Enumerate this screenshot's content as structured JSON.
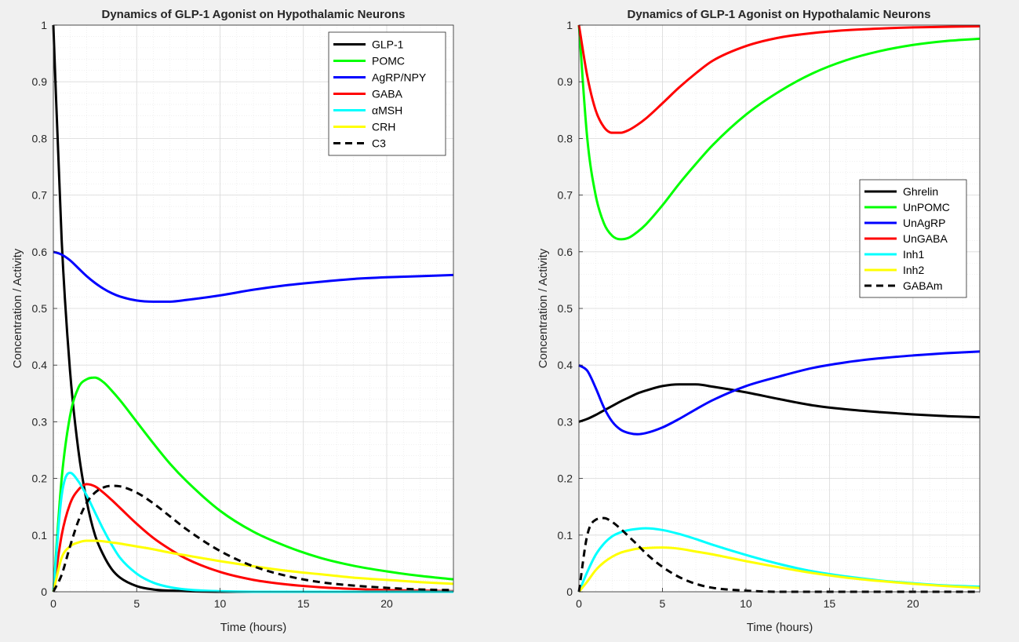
{
  "chart_data": [
    {
      "type": "line",
      "title": "Dynamics of GLP-1 Agonist on Hypothalamic Neurons",
      "xlabel": "Time (hours)",
      "ylabel": "Concentration / Activity",
      "xlim": [
        0,
        24
      ],
      "ylim": [
        0,
        1
      ],
      "xticks": [
        0,
        5,
        10,
        15,
        20
      ],
      "yticks": [
        0,
        0.1,
        0.2,
        0.3,
        0.4,
        0.5,
        0.6,
        0.7,
        0.8,
        0.9,
        1
      ],
      "xtick_labels": [
        "0",
        "5",
        "10",
        "15",
        "20"
      ],
      "ytick_labels": [
        "0",
        "0.1",
        "0.2",
        "0.3",
        "0.4",
        "0.5",
        "0.6",
        "0.7",
        "0.8",
        "0.9",
        "1"
      ],
      "grid": true,
      "legend_position": "top-right",
      "x": [
        0,
        0.5,
        1,
        1.5,
        2,
        2.5,
        3,
        3.5,
        4,
        5,
        6,
        7,
        8,
        10,
        12,
        14,
        16,
        18,
        20,
        22,
        24
      ],
      "series": [
        {
          "name": "GLP-1",
          "color": "#000000",
          "dash": false,
          "values": [
            1.0,
            0.62,
            0.39,
            0.25,
            0.16,
            0.1,
            0.065,
            0.04,
            0.025,
            0.01,
            0.004,
            0.002,
            0.001,
            0,
            0,
            0,
            0,
            0,
            0,
            0,
            0
          ]
        },
        {
          "name": "POMC",
          "color": "#00ff00",
          "dash": false,
          "values": [
            0,
            0.2,
            0.31,
            0.36,
            0.375,
            0.378,
            0.37,
            0.355,
            0.338,
            0.3,
            0.262,
            0.226,
            0.195,
            0.143,
            0.106,
            0.08,
            0.06,
            0.046,
            0.036,
            0.028,
            0.022
          ]
        },
        {
          "name": "AgRP/NPY",
          "color": "#0000ff",
          "dash": false,
          "values": [
            0.6,
            0.595,
            0.585,
            0.571,
            0.557,
            0.545,
            0.535,
            0.527,
            0.521,
            0.514,
            0.512,
            0.512,
            0.515,
            0.523,
            0.533,
            0.541,
            0.547,
            0.552,
            0.555,
            0.557,
            0.559
          ]
        },
        {
          "name": "GABA",
          "color": "#ff0000",
          "dash": false,
          "values": [
            0,
            0.1,
            0.155,
            0.18,
            0.19,
            0.186,
            0.175,
            0.162,
            0.148,
            0.12,
            0.095,
            0.075,
            0.058,
            0.035,
            0.021,
            0.013,
            0.008,
            0.005,
            0.003,
            0.002,
            0.001
          ]
        },
        {
          "name": "αMSH",
          "color": "#00ffff",
          "dash": false,
          "values": [
            0,
            0.17,
            0.21,
            0.195,
            0.17,
            0.14,
            0.11,
            0.083,
            0.06,
            0.032,
            0.016,
            0.008,
            0.004,
            0.001,
            0,
            0,
            0,
            0,
            0,
            0,
            0
          ]
        },
        {
          "name": "CRH",
          "color": "#ffff00",
          "dash": false,
          "values": [
            0,
            0.06,
            0.08,
            0.087,
            0.09,
            0.09,
            0.089,
            0.087,
            0.085,
            0.08,
            0.075,
            0.069,
            0.064,
            0.054,
            0.045,
            0.037,
            0.031,
            0.025,
            0.021,
            0.017,
            0.014
          ]
        },
        {
          "name": "C3",
          "color": "#000000",
          "dash": true,
          "values": [
            0,
            0.03,
            0.08,
            0.125,
            0.157,
            0.175,
            0.184,
            0.187,
            0.186,
            0.175,
            0.156,
            0.133,
            0.11,
            0.072,
            0.045,
            0.028,
            0.017,
            0.011,
            0.007,
            0.004,
            0.003
          ]
        }
      ]
    },
    {
      "type": "line",
      "title": "Dynamics of GLP-1 Agonist on Hypothalamic Neurons",
      "xlabel": "Time (hours)",
      "ylabel": "Concentration / Activity",
      "xlim": [
        0,
        24
      ],
      "ylim": [
        0,
        1
      ],
      "xticks": [
        0,
        5,
        10,
        15,
        20
      ],
      "yticks": [
        0,
        0.1,
        0.2,
        0.3,
        0.4,
        0.5,
        0.6,
        0.7,
        0.8,
        0.9,
        1
      ],
      "xtick_labels": [
        "0",
        "5",
        "10",
        "15",
        "20"
      ],
      "ytick_labels": [
        "0",
        "0.1",
        "0.2",
        "0.3",
        "0.4",
        "0.5",
        "0.6",
        "0.7",
        "0.8",
        "0.9",
        "1"
      ],
      "grid": true,
      "legend_position": "right",
      "x": [
        0,
        0.5,
        1,
        1.5,
        2,
        2.5,
        3,
        3.5,
        4,
        5,
        6,
        7,
        8,
        10,
        12,
        14,
        16,
        18,
        20,
        22,
        24
      ],
      "series": [
        {
          "name": "Ghrelin",
          "color": "#000000",
          "dash": false,
          "values": [
            0.3,
            0.305,
            0.312,
            0.32,
            0.328,
            0.336,
            0.343,
            0.35,
            0.355,
            0.363,
            0.366,
            0.366,
            0.362,
            0.352,
            0.34,
            0.329,
            0.322,
            0.317,
            0.313,
            0.31,
            0.308
          ]
        },
        {
          "name": "UnPOMC",
          "color": "#00ff00",
          "dash": false,
          "values": [
            1.0,
            0.8,
            0.7,
            0.65,
            0.628,
            0.622,
            0.625,
            0.635,
            0.648,
            0.682,
            0.72,
            0.755,
            0.788,
            0.842,
            0.883,
            0.915,
            0.938,
            0.954,
            0.965,
            0.972,
            0.976
          ]
        },
        {
          "name": "UnAgRP",
          "color": "#0000ff",
          "dash": false,
          "values": [
            0.4,
            0.39,
            0.36,
            0.325,
            0.3,
            0.286,
            0.28,
            0.278,
            0.28,
            0.29,
            0.305,
            0.322,
            0.338,
            0.363,
            0.38,
            0.395,
            0.405,
            0.412,
            0.417,
            0.421,
            0.424
          ]
        },
        {
          "name": "UnGABA",
          "color": "#ff0000",
          "dash": false,
          "values": [
            1.0,
            0.91,
            0.85,
            0.82,
            0.81,
            0.81,
            0.815,
            0.824,
            0.835,
            0.862,
            0.89,
            0.915,
            0.937,
            0.963,
            0.978,
            0.986,
            0.991,
            0.994,
            0.996,
            0.997,
            0.998
          ]
        },
        {
          "name": "Inh1",
          "color": "#00ffff",
          "dash": false,
          "values": [
            0,
            0.035,
            0.065,
            0.085,
            0.098,
            0.105,
            0.109,
            0.111,
            0.112,
            0.109,
            0.102,
            0.093,
            0.083,
            0.065,
            0.049,
            0.036,
            0.027,
            0.02,
            0.015,
            0.011,
            0.009
          ]
        },
        {
          "name": "Inh2",
          "color": "#ffff00",
          "dash": false,
          "values": [
            0,
            0.018,
            0.038,
            0.052,
            0.062,
            0.069,
            0.073,
            0.076,
            0.077,
            0.078,
            0.076,
            0.071,
            0.066,
            0.054,
            0.043,
            0.033,
            0.025,
            0.019,
            0.014,
            0.01,
            0.007
          ]
        },
        {
          "name": "GABAm",
          "color": "#000000",
          "dash": true,
          "values": [
            0,
            0.1,
            0.127,
            0.13,
            0.123,
            0.111,
            0.097,
            0.083,
            0.068,
            0.044,
            0.026,
            0.014,
            0.007,
            0.002,
            0,
            0,
            0,
            0,
            0,
            0,
            0
          ]
        }
      ]
    }
  ]
}
